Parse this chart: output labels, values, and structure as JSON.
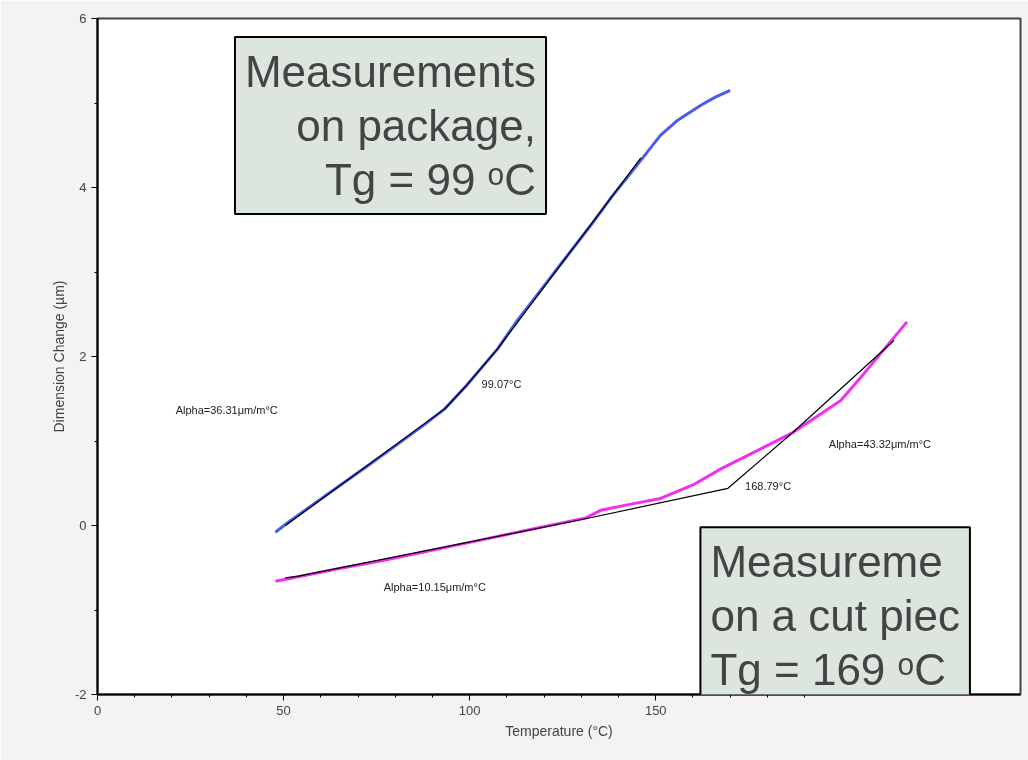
{
  "chart_data": {
    "type": "line",
    "xlabel": "Temperature (°C)",
    "ylabel": "Dimension Change (µm)",
    "xlim": [
      0,
      248
    ],
    "ylim": [
      -2,
      6
    ],
    "xticks": [
      0,
      50,
      100,
      150
    ],
    "yticks": [
      -2,
      0,
      2,
      4,
      6
    ],
    "grid": false,
    "line_style": "solid",
    "series": [
      {
        "color": "#4a5cf0",
        "x": [
          47.8,
          51,
          57,
          65.3,
          73,
          81.5,
          88,
          93.3,
          99.2,
          107.5,
          113,
          119,
          126,
          132.5,
          138,
          143.8,
          151.3,
          156,
          162,
          166,
          170
        ],
        "values": [
          -0.08,
          0.03,
          0.22,
          0.48,
          0.72,
          0.99,
          1.2,
          1.38,
          1.66,
          2.09,
          2.44,
          2.78,
          3.18,
          3.55,
          3.88,
          4.2,
          4.62,
          4.8,
          4.97,
          5.07,
          5.15
        ]
      },
      {
        "color": "#f030f0",
        "x": [
          47.8,
          54.6,
          65,
          76,
          88,
          100,
          115,
          131.2,
          135.2,
          143,
          151.3,
          160,
          167.5,
          177,
          186.8,
          193,
          199.7,
          206,
          212,
          217.5
        ],
        "values": [
          -0.66,
          -0.6,
          -0.51,
          -0.42,
          -0.31,
          -0.2,
          -0.06,
          0.09,
          0.18,
          0.25,
          0.32,
          0.48,
          0.67,
          0.88,
          1.1,
          1.28,
          1.48,
          1.8,
          2.12,
          2.41
        ]
      },
      {
        "color": "#000000",
        "x": [
          50.5,
          93.3,
          99.2,
          107.5,
          146
        ],
        "values": [
          0.0,
          1.38,
          1.66,
          2.09,
          4.35
        ]
      },
      {
        "color": "#000000",
        "x": [
          50.5,
          54,
          131.2,
          169.4,
          186.8,
          214
        ],
        "values": [
          -0.62,
          -0.6,
          0.08,
          0.44,
          1.1,
          2.19
        ]
      }
    ],
    "annotations": [
      "Alpha=36.31μm/m°C",
      "99.07°C",
      "Alpha=10.15μm/m°C",
      "168.79°C",
      "Alpha=43.32μm/m°C",
      "Measurements\non package,\nTg = 99 ᵒC",
      "Measureme\non a cut piec\nTg = 169 ᵒC"
    ]
  }
}
